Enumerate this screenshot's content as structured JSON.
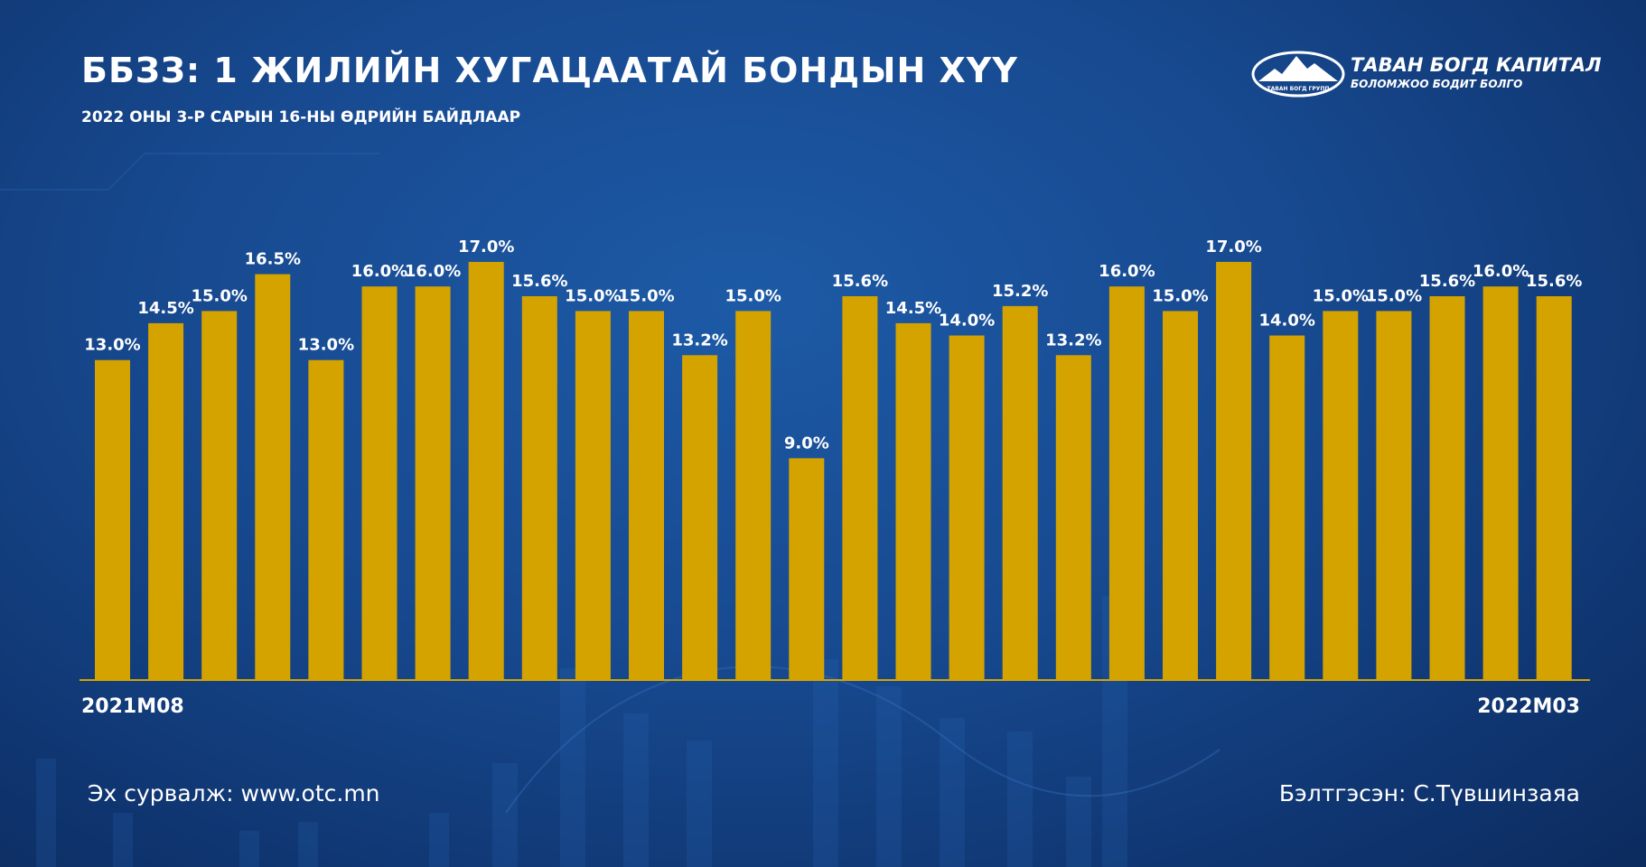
{
  "header": {
    "title": "ББЗЗ: 1 ЖИЛИЙН ХУГАЦААТАЙ БОНДЫН ХҮҮ",
    "subtitle": "2022 ОНЫ 3-Р САРЫН 16-НЫ ӨДРИЙН БАЙДЛААР"
  },
  "logo": {
    "name": "ТАВАН БОГД КАПИТАЛ",
    "slogan": "БОЛОМЖОО БОДИТ БОЛГО",
    "mark_text": "ТАВАН БОГД ГРУПП"
  },
  "colors": {
    "bar": "#d4a300",
    "axis": "#d4a300",
    "text": "#ffffff"
  },
  "chart_data": {
    "type": "bar",
    "title": "ББЗЗ: 1 ЖИЛИЙН ХУГАЦААТАЙ БОНДЫН ХҮҮ",
    "subtitle": "2022 ОНЫ 3-Р САРЫН 16-НЫ ӨДРИЙН БАЙДЛААР",
    "x_start_label": "2021M08",
    "x_end_label": "2022M03",
    "values": [
      13.0,
      14.5,
      15.0,
      16.5,
      13.0,
      16.0,
      16.0,
      17.0,
      15.6,
      15.0,
      15.0,
      13.2,
      15.0,
      9.0,
      15.6,
      14.5,
      14.0,
      15.2,
      13.2,
      16.0,
      15.0,
      17.0,
      14.0,
      15.0,
      15.0,
      15.6,
      16.0,
      15.6
    ],
    "value_labels": [
      "13.0%",
      "14.5%",
      "15.0%",
      "16.5%",
      "13.0%",
      "16.0%",
      "16.0%",
      "17.0%",
      "15.6%",
      "15.0%",
      "15.0%",
      "13.2%",
      "15.0%",
      "9.0%",
      "15.6%",
      "14.5%",
      "14.0%",
      "15.2%",
      "13.2%",
      "16.0%",
      "15.0%",
      "17.0%",
      "14.0%",
      "15.0%",
      "15.0%",
      "15.6%",
      "16.0%",
      "15.6%"
    ],
    "ylim": [
      0,
      17
    ],
    "grid": false,
    "legend": "none"
  },
  "footer": {
    "source": "Эх сурвалж: www.otc.mn",
    "author": "Бэлтгэсэн: С.Түвшинзаяа"
  }
}
